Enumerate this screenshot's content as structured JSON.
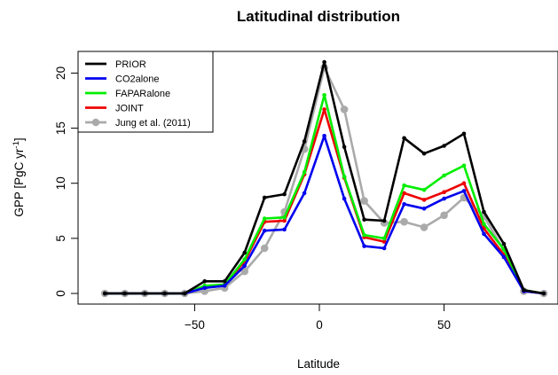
{
  "chart_data": {
    "type": "line",
    "title": "Latitudinal distribution",
    "xlabel": "Latitude",
    "ylabel": "GPP [PgC yr",
    "ylabel_sup": "-1",
    "ylabel_end": "]",
    "xlim": [
      -90,
      90
    ],
    "ylim": [
      0,
      21
    ],
    "xticks": [
      -50,
      0,
      50
    ],
    "yticks": [
      0,
      5,
      10,
      15,
      20
    ],
    "grid": false,
    "legend_position": "top-left",
    "x": [
      -86,
      -78,
      -70,
      -62,
      -54,
      -46,
      -38,
      -30,
      -22,
      -14,
      -6,
      2,
      10,
      18,
      26,
      34,
      42,
      50,
      58,
      66,
      74,
      82,
      90
    ],
    "series": [
      {
        "name": "PRIOR",
        "color": "#000000",
        "marker_size": 2.3,
        "values": [
          0,
          0,
          0,
          0,
          0,
          1.1,
          1.1,
          3.7,
          8.7,
          9.0,
          13.8,
          21.0,
          13.3,
          6.7,
          6.6,
          14.1,
          12.7,
          13.4,
          14.5,
          7.4,
          4.5,
          0.3,
          0
        ]
      },
      {
        "name": "CO2alone",
        "color": "#0000ee",
        "marker_size": 2.3,
        "values": [
          0,
          0,
          0,
          0,
          0,
          0.5,
          0.7,
          2.5,
          5.7,
          5.8,
          9.1,
          14.3,
          8.6,
          4.3,
          4.1,
          8.1,
          7.7,
          8.6,
          9.3,
          5.4,
          3.3,
          0.2,
          0
        ]
      },
      {
        "name": "FAPARalone",
        "color": "#00ee00",
        "marker_size": 2.3,
        "values": [
          0,
          0,
          0,
          0,
          0,
          0.7,
          0.8,
          3.1,
          6.8,
          6.9,
          11.0,
          18.0,
          10.6,
          5.3,
          5.0,
          9.8,
          9.4,
          10.7,
          11.6,
          6.3,
          4.0,
          0.3,
          0
        ]
      },
      {
        "name": "JOINT",
        "color": "#ee0000",
        "marker_size": 2.3,
        "values": [
          0,
          0,
          0,
          0,
          0,
          0.6,
          0.8,
          2.9,
          6.5,
          6.6,
          10.8,
          16.7,
          10.5,
          5.1,
          4.7,
          9.1,
          8.5,
          9.2,
          10.0,
          5.9,
          3.5,
          0.2,
          0
        ]
      },
      {
        "name": "Jung et al. (2011)",
        "color": "#aaaaaa",
        "marker_size": 4.3,
        "values": [
          0,
          0,
          0,
          0,
          0,
          0.2,
          0.5,
          2.0,
          4.1,
          7.4,
          13.1,
          20.5,
          16.7,
          8.4,
          6.4,
          6.5,
          6.0,
          7.1,
          8.7,
          7.0,
          3.9,
          0.2,
          0
        ]
      }
    ]
  }
}
